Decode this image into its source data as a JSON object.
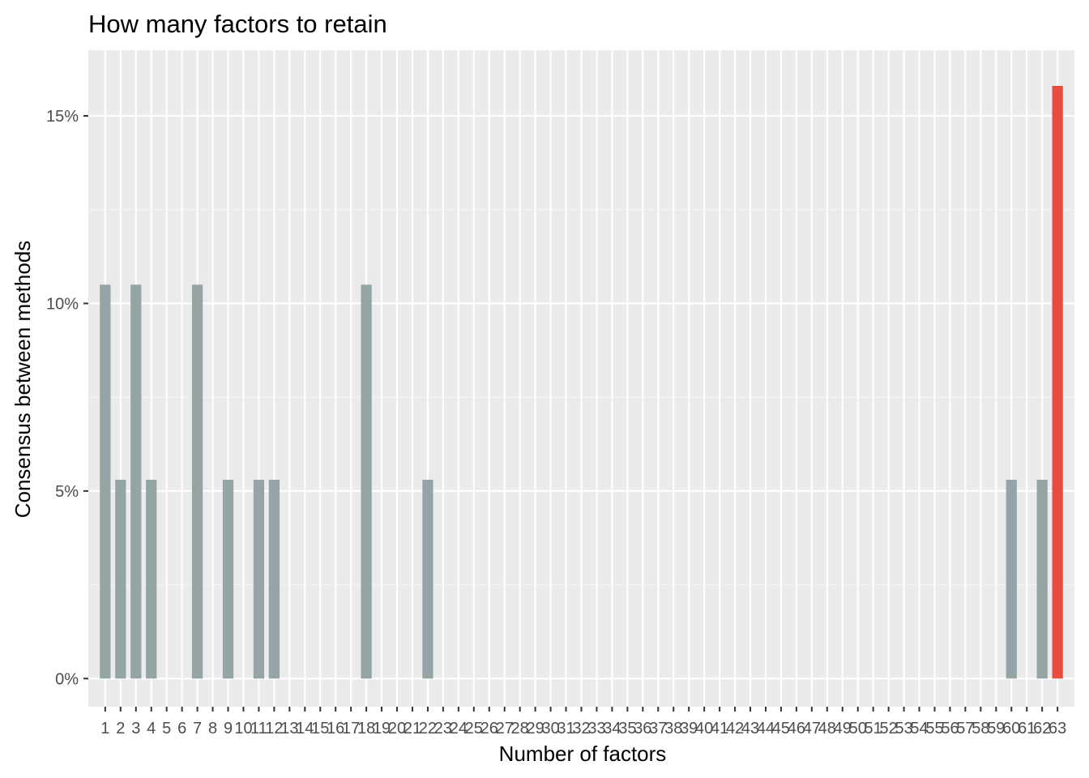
{
  "chart_data": {
    "type": "bar",
    "title": "How many factors to retain",
    "xlabel": "Number of factors",
    "ylabel": "Consensus between methods",
    "categories": [
      "1",
      "2",
      "3",
      "4",
      "5",
      "6",
      "7",
      "8",
      "9",
      "10",
      "11",
      "12",
      "13",
      "14",
      "15",
      "16",
      "17",
      "18",
      "19",
      "20",
      "21",
      "22",
      "23",
      "24",
      "25",
      "26",
      "27",
      "28",
      "29",
      "30",
      "31",
      "32",
      "33",
      "34",
      "35",
      "36",
      "37",
      "38",
      "39",
      "40",
      "41",
      "42",
      "43",
      "44",
      "45",
      "46",
      "47",
      "48",
      "49",
      "50",
      "51",
      "52",
      "53",
      "54",
      "55",
      "56",
      "57",
      "58",
      "59",
      "60",
      "61",
      "62",
      "63"
    ],
    "values": [
      0.105,
      0.053,
      0.105,
      0.053,
      0,
      0,
      0.105,
      0,
      0.053,
      0,
      0.053,
      0.053,
      0,
      0,
      0,
      0,
      0,
      0.105,
      0,
      0,
      0,
      0.053,
      0,
      0,
      0,
      0,
      0,
      0,
      0,
      0,
      0,
      0,
      0,
      0,
      0,
      0,
      0,
      0,
      0,
      0,
      0,
      0,
      0,
      0,
      0,
      0,
      0,
      0,
      0,
      0,
      0,
      0,
      0,
      0,
      0,
      0,
      0,
      0,
      0,
      0.053,
      0,
      0.053,
      0.158
    ],
    "highlight_category": "63",
    "ylim": [
      -0.0075,
      0.1675
    ],
    "y_ticks": [
      0,
      0.05,
      0.1,
      0.15
    ],
    "y_tick_labels": [
      "0%",
      "5%",
      "10%",
      "15%"
    ],
    "grid": true,
    "legend": "none",
    "colors": {
      "bar": "#95a5a6",
      "highlight": "#e74c3c",
      "panel": "#ebebeb",
      "grid_major": "#ffffff",
      "grid_minor": "#f5f5f5"
    }
  }
}
